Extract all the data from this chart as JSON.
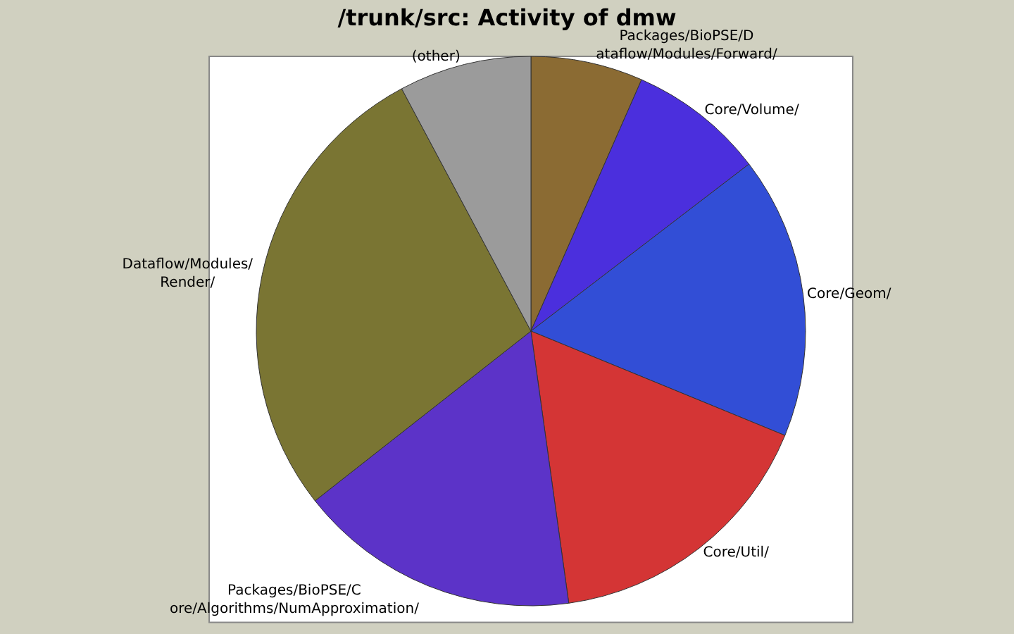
{
  "chart_data": {
    "type": "pie",
    "title": "/trunk/src: Activity of dmw",
    "categories": [
      "Packages/BioPSE/D\nataflow/Modules/Forward/",
      "Core/Volume/",
      "Core/Geom/",
      "Core/Util/",
      "Packages/BioPSE/C\nore/Algorithms/NumApproximation/",
      "Dataflow/Modules/\nRender/",
      "(other)"
    ],
    "values": [
      6.6,
      8.0,
      16.6,
      16.6,
      16.6,
      27.8,
      7.8
    ],
    "colors": [
      "#8b6b33",
      "#4b2fdd",
      "#324ed6",
      "#d43535",
      "#5c33c8",
      "#7a7533",
      "#9b9b9b"
    ],
    "legend": false
  }
}
